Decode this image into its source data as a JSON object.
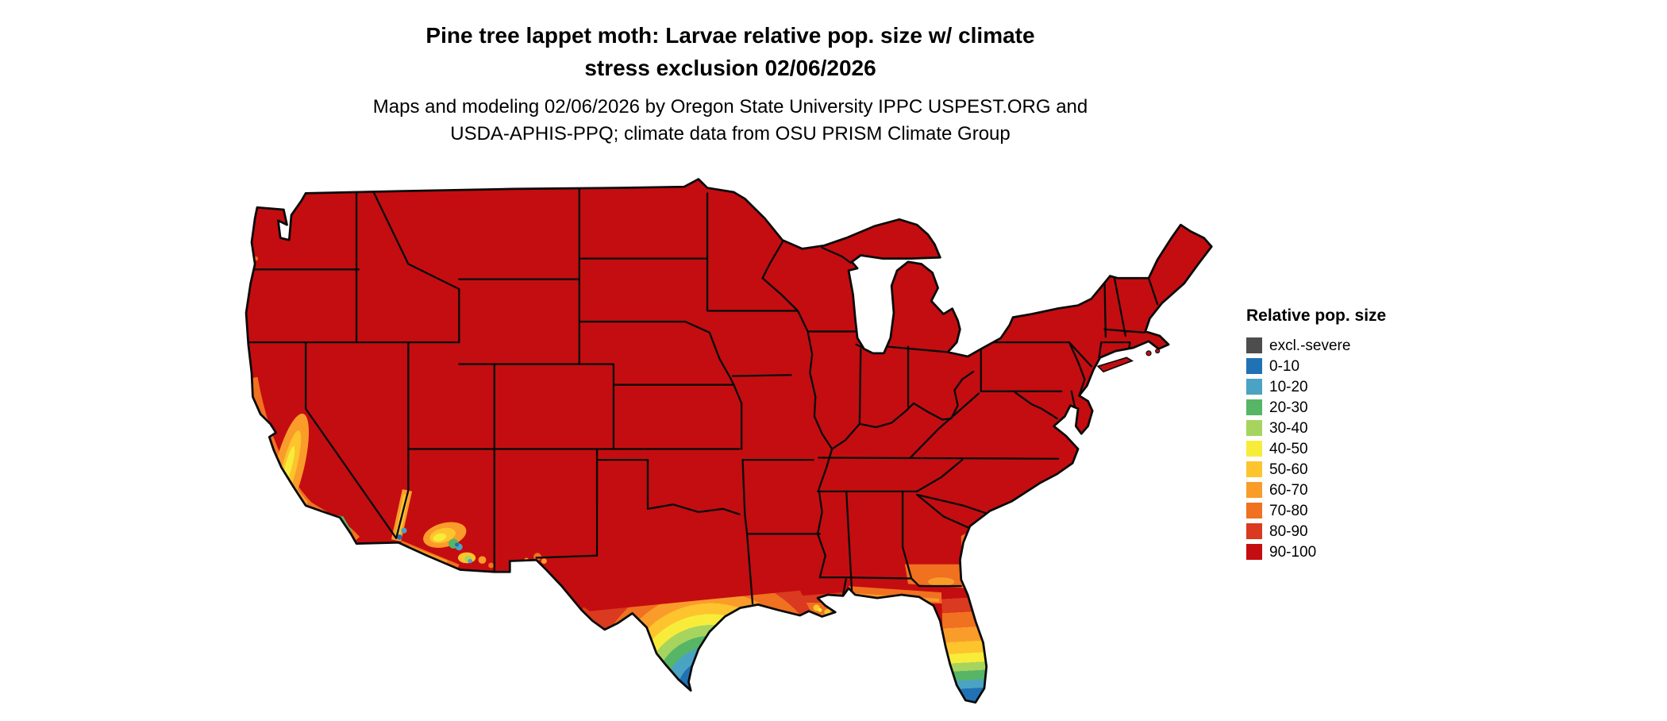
{
  "header": {
    "title_line1": "Pine tree lappet moth: Larvae relative pop. size w/ climate",
    "title_line2": "stress exclusion 02/06/2026",
    "subtitle_line1": "Maps and modeling 02/06/2026 by Oregon State University IPPC USPEST.ORG and",
    "subtitle_line2": "USDA-APHIS-PPQ; climate data from OSU PRISM Climate Group"
  },
  "legend": {
    "title": "Relative pop. size",
    "items": [
      {
        "label": "excl.-severe",
        "color": "#4d4d4d"
      },
      {
        "label": "0-10",
        "color": "#2171b5"
      },
      {
        "label": "10-20",
        "color": "#4ba3c3"
      },
      {
        "label": "20-30",
        "color": "#57b566"
      },
      {
        "label": "30-40",
        "color": "#a6d45f"
      },
      {
        "label": "40-50",
        "color": "#f8ec3a"
      },
      {
        "label": "50-60",
        "color": "#fdc42d"
      },
      {
        "label": "60-70",
        "color": "#fa9c2a"
      },
      {
        "label": "70-80",
        "color": "#f0711f"
      },
      {
        "label": "80-90",
        "color": "#da3a1f"
      },
      {
        "label": "90-100",
        "color": "#c40d10"
      }
    ]
  },
  "map": {
    "region": "Continental United States",
    "outline_color": "#0a0a0a",
    "dominant_class": "90-100",
    "palette": {
      "excl": "#4d4d4d",
      "c0": "#2171b5",
      "c10": "#4ba3c3",
      "c20": "#57b566",
      "c30": "#a6d45f",
      "c40": "#f8ec3a",
      "c50": "#fdc42d",
      "c60": "#fa9c2a",
      "c70": "#f0711f",
      "c80": "#da3a1f",
      "c90": "#c40d10"
    },
    "low_value_areas": [
      "southern Florida peninsula (0-10)",
      "southern Texas / lower Gulf coast (0-10 to 40-50 bands)",
      "southern California coast (0-10 to 30-40 patches)",
      "south-central Arizona (0-10 to 50-60 patches)",
      "Gulf coast strip Louisiana to Florida panhandle (50-80)",
      "California Central Valley and coast (40-80)"
    ]
  }
}
